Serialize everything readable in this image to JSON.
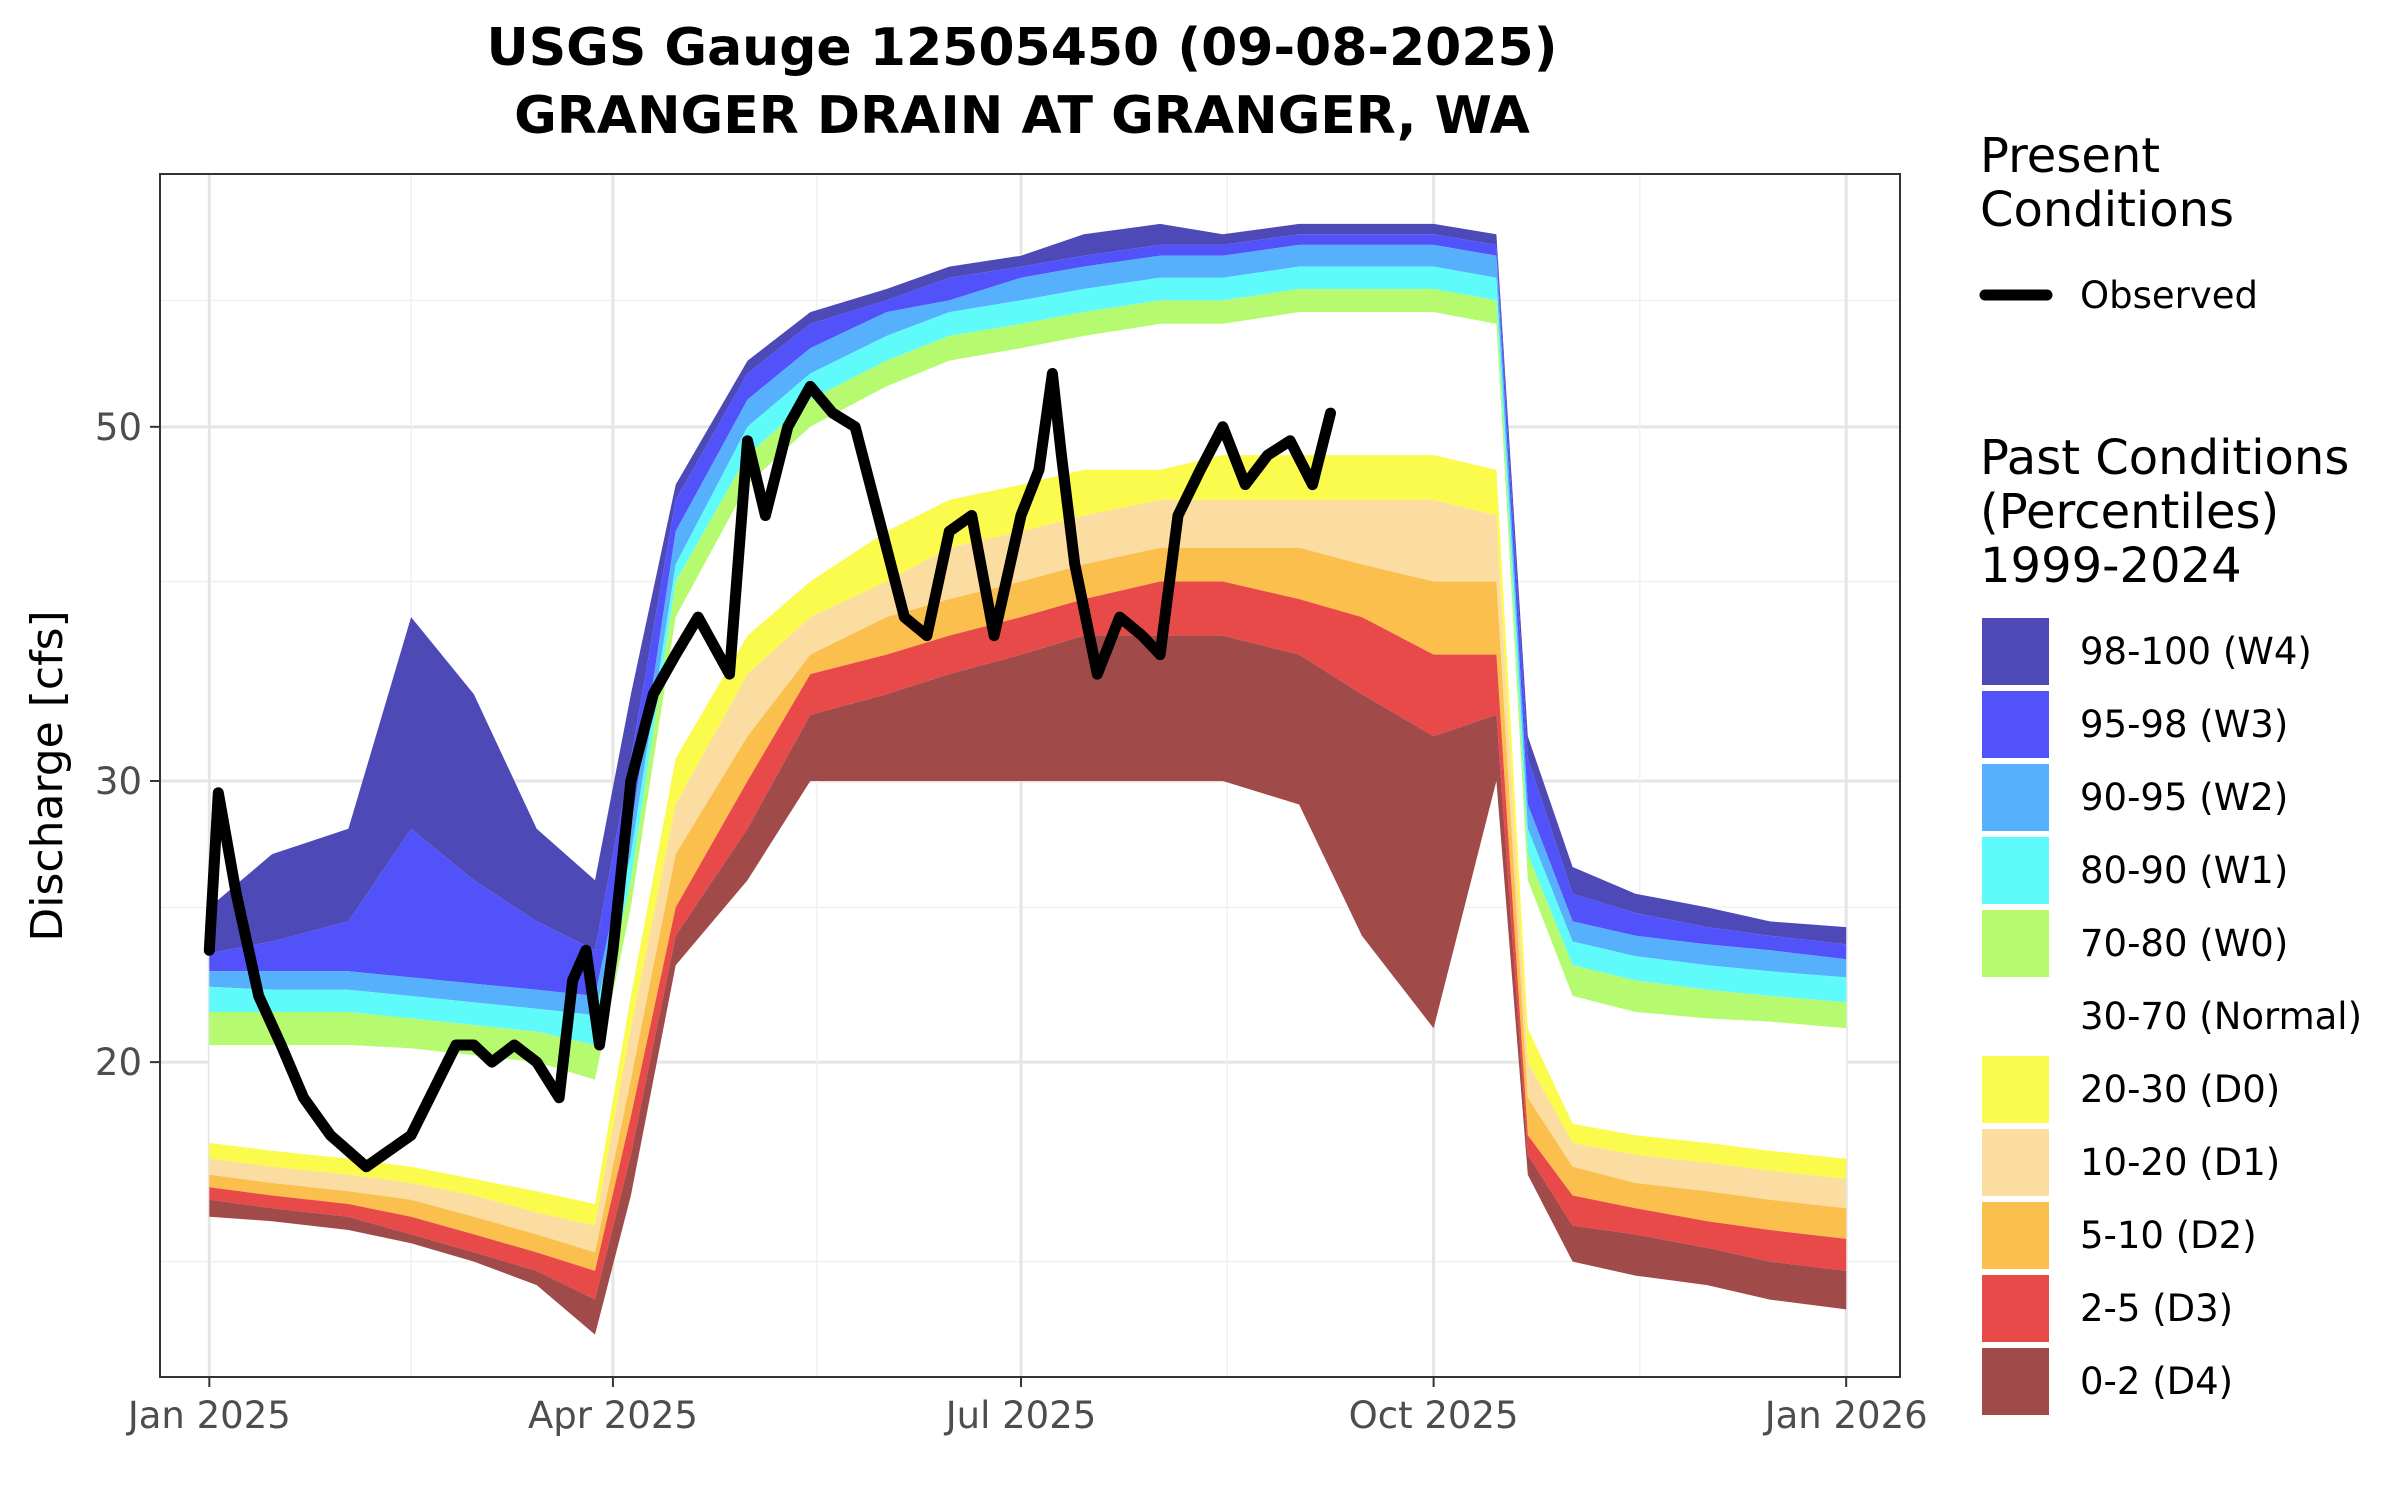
{
  "title_line1": "USGS Gauge 12505450 (09-08-2025)",
  "title_line2": "GRANGER DRAIN AT GRANGER, WA",
  "chart_data": {
    "type": "area",
    "ylabel": "Discharge [cfs]",
    "xlabel": "",
    "y_scale": "log",
    "ylim": [
      12.7,
      72
    ],
    "xlim": [
      "2024-12-21",
      "2026-01-13"
    ],
    "x_ticks": [
      {
        "date": "2025-01-01",
        "label": "Jan 2025"
      },
      {
        "date": "2025-04-01",
        "label": "Apr 2025"
      },
      {
        "date": "2025-07-01",
        "label": "Jul 2025"
      },
      {
        "date": "2025-10-01",
        "label": "Oct 2025"
      },
      {
        "date": "2026-01-01",
        "label": "Jan 2026"
      }
    ],
    "y_ticks": [
      20,
      30,
      50
    ],
    "y_minor_gridlines": [
      15,
      25,
      40,
      60
    ],
    "grid": true,
    "legend_present_title": [
      "Present",
      "Conditions"
    ],
    "legend_observed_label": "Observed",
    "legend_past_title": [
      "Past Conditions",
      "(Percentiles)",
      "1999-2024"
    ],
    "percentile_bands": [
      {
        "label": "98-100 (W4)",
        "color": "#4d4ab8"
      },
      {
        "label": "95-98 (W3)",
        "color": "#5252fa"
      },
      {
        "label": "90-95 (W2)",
        "color": "#57b0fb"
      },
      {
        "label": "80-90 (W1)",
        "color": "#5ffbfb"
      },
      {
        "label": "70-80 (W0)",
        "color": "#b6fb6f"
      },
      {
        "label": "30-70 (Normal)",
        "color": "#ffffff"
      },
      {
        "label": "20-30 (D0)",
        "color": "#fbfb4d"
      },
      {
        "label": "10-20 (D1)",
        "color": "#fbdda1"
      },
      {
        "label": "5-10 (D2)",
        "color": "#fbbf4d"
      },
      {
        "label": "2-5 (D3)",
        "color": "#e84a4a"
      },
      {
        "label": "0-2 (D4)",
        "color": "#a14a4a"
      }
    ],
    "observed_color": "#000000",
    "percentile_dates": [
      "2025-01-01",
      "2025-01-15",
      "2025-02-01",
      "2025-02-15",
      "2025-03-01",
      "2025-03-15",
      "2025-03-28",
      "2025-04-05",
      "2025-04-15",
      "2025-05-01",
      "2025-05-15",
      "2025-06-01",
      "2025-06-15",
      "2025-07-01",
      "2025-07-15",
      "2025-08-01",
      "2025-08-15",
      "2025-09-01",
      "2025-09-15",
      "2025-10-01",
      "2025-10-15",
      "2025-10-22",
      "2025-11-01",
      "2025-11-15",
      "2025-12-01",
      "2025-12-15",
      "2026-01-01"
    ],
    "percentile_boundaries": {
      "p0": [
        16.0,
        15.9,
        15.7,
        15.4,
        15.0,
        14.5,
        13.5,
        16.5,
        23,
        26,
        30,
        30,
        30,
        30,
        30,
        30,
        30,
        29,
        24,
        21,
        30,
        17,
        15,
        14.7,
        14.5,
        14.2,
        14.0
      ],
      "p2": [
        16.4,
        16.2,
        16.0,
        15.6,
        15.2,
        14.8,
        14.2,
        17.5,
        24,
        28,
        33,
        34,
        35,
        36,
        37,
        37,
        37,
        36,
        34,
        32,
        33,
        17.5,
        15.8,
        15.6,
        15.3,
        15.0,
        14.8
      ],
      "p5": [
        16.7,
        16.5,
        16.3,
        16.0,
        15.6,
        15.2,
        14.8,
        18.5,
        25,
        30,
        35,
        36,
        37,
        38,
        39,
        40,
        40,
        39,
        38,
        36,
        36,
        18,
        16.5,
        16.2,
        15.9,
        15.7,
        15.5
      ],
      "p10": [
        17.0,
        16.8,
        16.6,
        16.4,
        16.0,
        15.6,
        15.2,
        19.5,
        27,
        32,
        36,
        38,
        39,
        40,
        41,
        42,
        42,
        42,
        41,
        40,
        40,
        19,
        17.2,
        16.8,
        16.6,
        16.4,
        16.2
      ],
      "p20": [
        17.4,
        17.2,
        17.0,
        16.8,
        16.5,
        16.1,
        15.8,
        21,
        29,
        35,
        38,
        40,
        42,
        43,
        44,
        45,
        45,
        45,
        45,
        45,
        44,
        20,
        17.8,
        17.5,
        17.3,
        17.1,
        16.9
      ],
      "p30": [
        17.8,
        17.6,
        17.4,
        17.2,
        16.9,
        16.6,
        16.3,
        22,
        31,
        37,
        40,
        43,
        45,
        46,
        47,
        47,
        48,
        48,
        48,
        48,
        47,
        21,
        18.3,
        18.0,
        17.8,
        17.6,
        17.4
      ],
      "p70": [
        20.5,
        20.5,
        20.5,
        20.4,
        20.2,
        20.0,
        19.5,
        25,
        38,
        46,
        50,
        53,
        55,
        56,
        57,
        58,
        58,
        59,
        59,
        59,
        58,
        26,
        22,
        21.5,
        21.3,
        21.2,
        21.0
      ],
      "p80": [
        21.5,
        21.5,
        21.5,
        21.3,
        21.1,
        20.9,
        20.5,
        26,
        40,
        48,
        52,
        55,
        57,
        58,
        59,
        60,
        60,
        61,
        61,
        61,
        60,
        27,
        23,
        22.5,
        22.2,
        22.0,
        21.8
      ],
      "p90": [
        22.3,
        22.2,
        22.2,
        22.0,
        21.8,
        21.6,
        21.4,
        27,
        41,
        50,
        54,
        57,
        59,
        60,
        61,
        62,
        62,
        63,
        63,
        63,
        62,
        28,
        23.8,
        23.3,
        23.0,
        22.8,
        22.6
      ],
      "p95": [
        22.8,
        22.8,
        22.8,
        22.6,
        22.4,
        22.2,
        22.0,
        28,
        43,
        52,
        56,
        59,
        60,
        62,
        63,
        64,
        64,
        65,
        65,
        65,
        64,
        29,
        24.5,
        24.0,
        23.7,
        23.5,
        23.2
      ],
      "p98": [
        23.4,
        23.8,
        24.5,
        28,
        26,
        24.5,
        23.5,
        31,
        45,
        54,
        58,
        60,
        62,
        63,
        64,
        65,
        65,
        66,
        66,
        66,
        65,
        31,
        25.5,
        24.8,
        24.3,
        24.0,
        23.7
      ],
      "p100": [
        25,
        27,
        28,
        38,
        34,
        28,
        26,
        34,
        46,
        55,
        59,
        61,
        63,
        64,
        66,
        67,
        66,
        67,
        67,
        67,
        66,
        32,
        26.5,
        25.5,
        25,
        24.5,
        24.3
      ]
    },
    "observed": {
      "x": [
        "2025-01-01",
        "2025-01-03",
        "2025-01-07",
        "2025-01-12",
        "2025-01-17",
        "2025-01-22",
        "2025-01-28",
        "2025-02-05",
        "2025-02-15",
        "2025-02-25",
        "2025-03-01",
        "2025-03-05",
        "2025-03-10",
        "2025-03-15",
        "2025-03-20",
        "2025-03-23",
        "2025-03-26",
        "2025-03-29",
        "2025-04-01",
        "2025-04-05",
        "2025-04-10",
        "2025-04-15",
        "2025-04-20",
        "2025-04-27",
        "2025-05-01",
        "2025-05-05",
        "2025-05-10",
        "2025-05-15",
        "2025-05-20",
        "2025-05-25",
        "2025-06-01",
        "2025-06-05",
        "2025-06-10",
        "2025-06-15",
        "2025-06-20",
        "2025-06-25",
        "2025-07-01",
        "2025-07-05",
        "2025-07-08",
        "2025-07-10",
        "2025-07-13",
        "2025-07-18",
        "2025-07-23",
        "2025-07-28",
        "2025-08-01",
        "2025-08-05",
        "2025-08-10",
        "2025-08-15",
        "2025-08-20",
        "2025-08-25",
        "2025-08-30",
        "2025-09-04",
        "2025-09-08"
      ],
      "y": [
        23.5,
        29.5,
        25.5,
        22.0,
        20.5,
        19.0,
        18.0,
        17.2,
        18.0,
        20.5,
        20.5,
        20.0,
        20.5,
        20.0,
        19.0,
        22.5,
        23.5,
        20.5,
        23.5,
        30.0,
        34.0,
        36.0,
        38.0,
        35.0,
        49.0,
        44.0,
        50.0,
        53.0,
        51.0,
        50.0,
        42.0,
        38.0,
        37.0,
        43.0,
        44.0,
        37.0,
        44.0,
        47.0,
        54.0,
        48.0,
        41.0,
        35.0,
        38.0,
        37.0,
        36.0,
        44.0,
        47.0,
        50.0,
        46.0,
        48.0,
        49.0,
        46.0,
        51.0
      ]
    }
  }
}
